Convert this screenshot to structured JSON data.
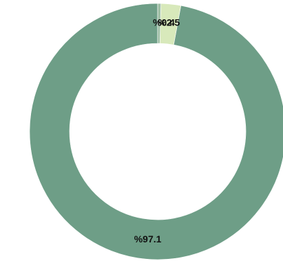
{
  "chart_data": {
    "type": "pie",
    "donut": true,
    "start_angle_deg": 0,
    "direction": "counterclockwise",
    "slices": [
      {
        "label_text": "%97.1",
        "value": 97.1,
        "color": "#6e9e87"
      },
      {
        "label_text": "%2.5",
        "value": 2.5,
        "color": "#d8e9bb"
      },
      {
        "label_text": "%0.4",
        "value": 0.4,
        "color": "#9fbfa5"
      }
    ],
    "legend": "none"
  }
}
